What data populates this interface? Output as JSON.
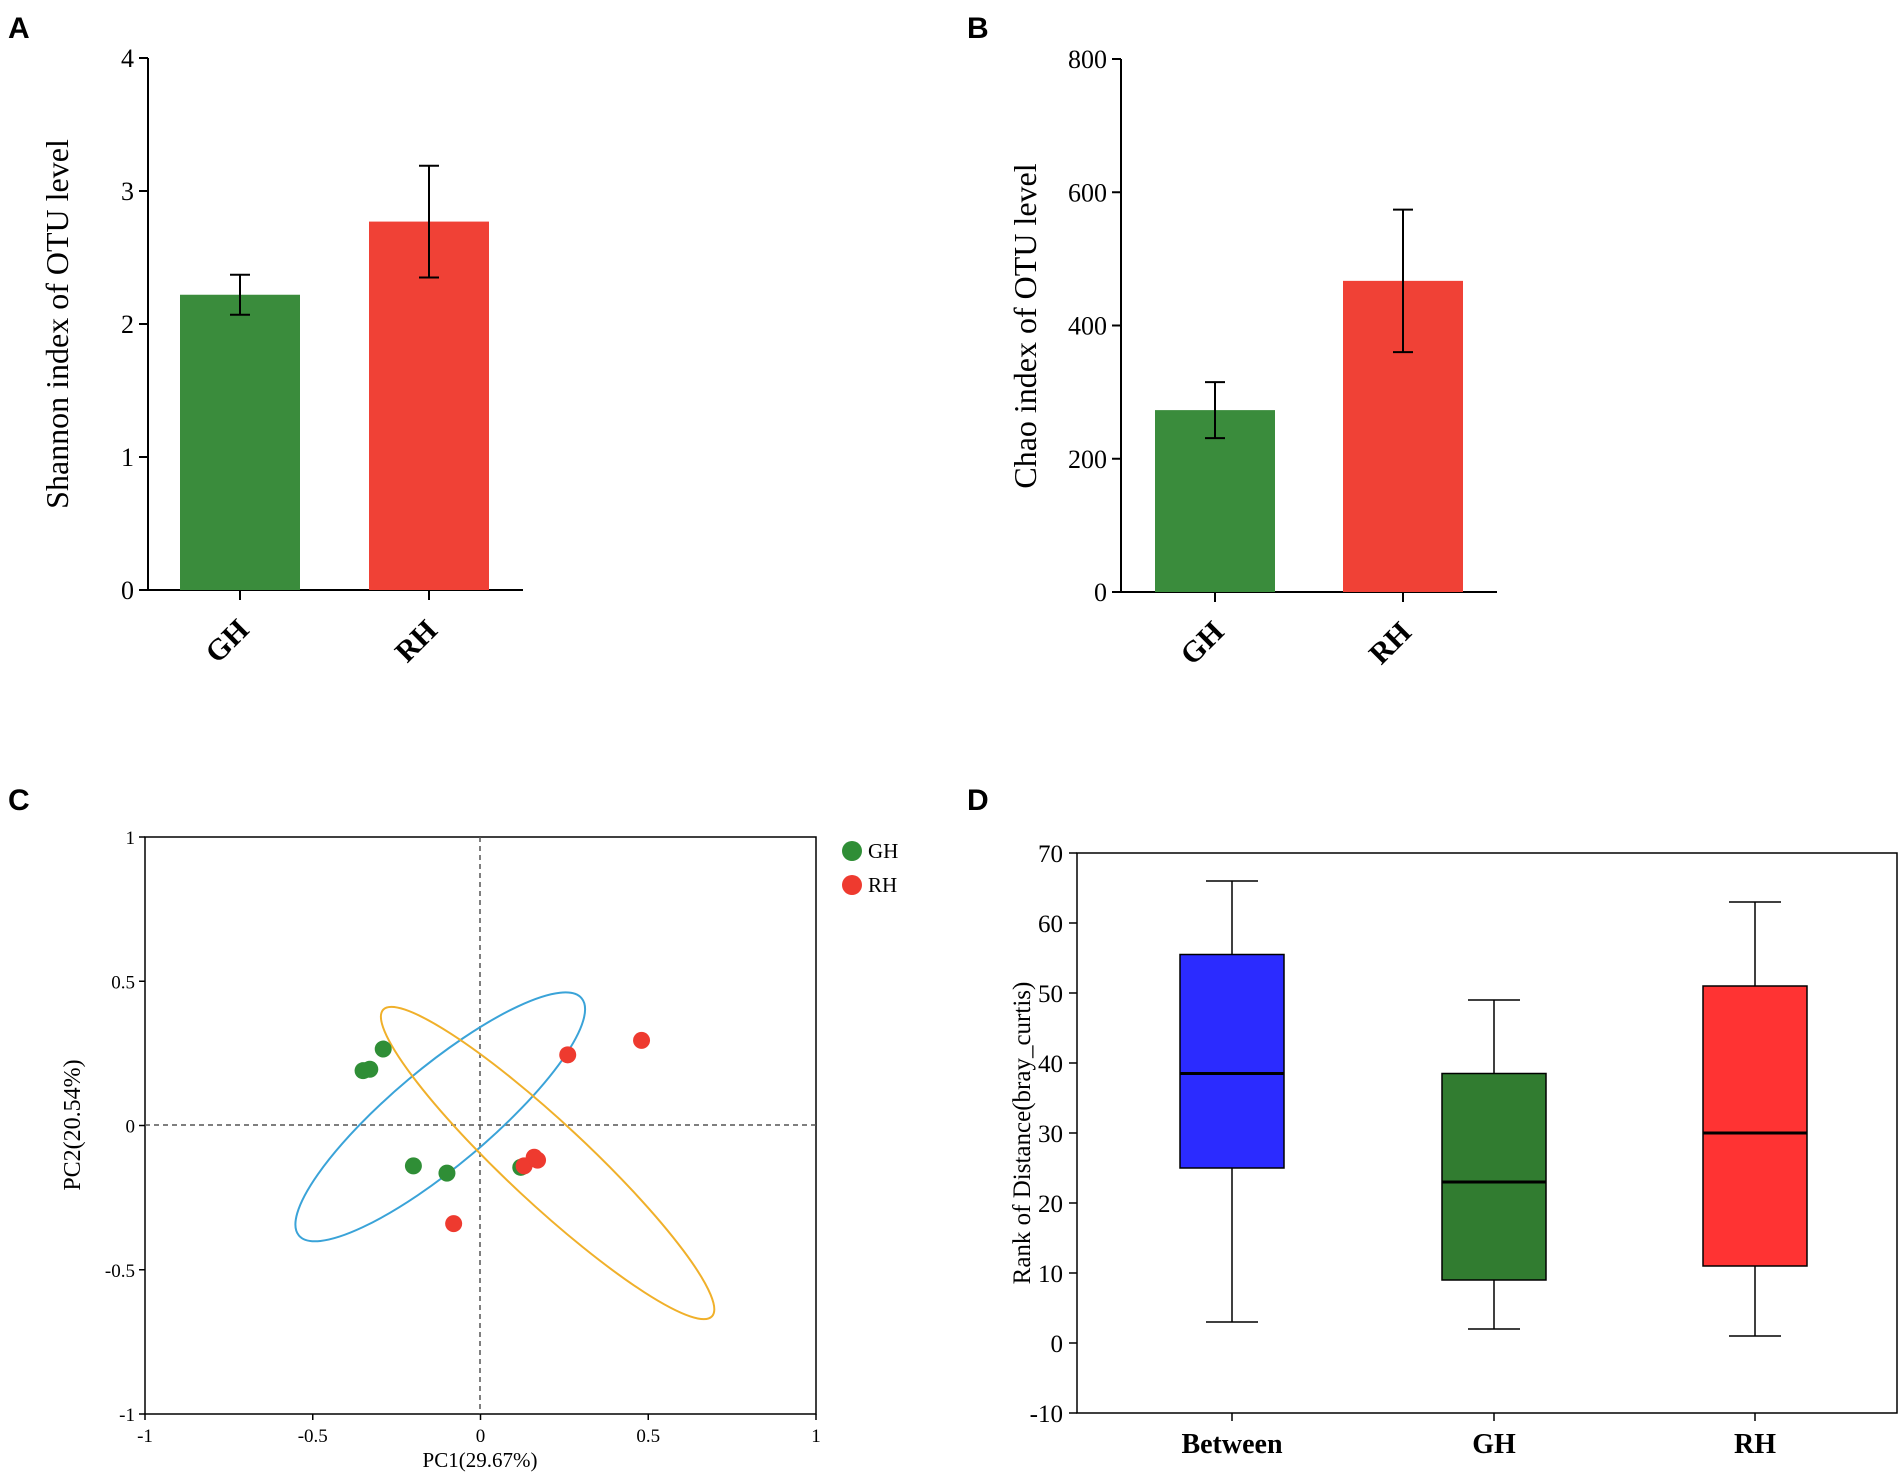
{
  "colors": {
    "green": "#3a8c3c",
    "red": "#f04136",
    "box_blue": "#2b2bff",
    "box_green": "#317c30",
    "box_red": "#ff3333",
    "ellipse_blue": "#3aa3d8",
    "ellipse_orange": "#f0b02a",
    "pt_green": "#2f8e36",
    "pt_red": "#ee3a2f"
  },
  "chart_data": [
    {
      "panel": "A",
      "type": "bar",
      "categories": [
        "GH",
        "RH"
      ],
      "values": [
        2.22,
        2.77
      ],
      "errors": [
        0.15,
        0.42
      ],
      "ylabel": "Shannon index of OTU level",
      "ylim": [
        0,
        4
      ],
      "yticks": [
        "0",
        "1",
        "2",
        "3",
        "4"
      ]
    },
    {
      "panel": "B",
      "type": "bar",
      "categories": [
        "GH",
        "RH"
      ],
      "values": [
        273,
        467
      ],
      "errors": [
        42,
        107
      ],
      "ylabel": "Chao index of OTU level",
      "ylim": [
        0,
        800
      ],
      "yticks": [
        "0",
        "200",
        "400",
        "600",
        "800"
      ]
    },
    {
      "panel": "C",
      "type": "scatter",
      "xlabel": "PC1(29.67%)",
      "ylabel": "PC2(20.54%)",
      "xlim": [
        -1,
        1
      ],
      "ylim": [
        -1,
        1
      ],
      "xticks": [
        "-1",
        "-0.5",
        "0",
        "0.5",
        "1"
      ],
      "yticks": [
        "1",
        "0.5",
        "0",
        "-0.5",
        "-1"
      ],
      "legend": [
        "GH",
        "RH"
      ],
      "series": [
        {
          "name": "GH",
          "points": [
            [
              -0.35,
              0.19
            ],
            [
              -0.33,
              0.195
            ],
            [
              -0.29,
              0.265
            ],
            [
              -0.2,
              -0.14
            ],
            [
              -0.1,
              -0.165
            ],
            [
              0.12,
              -0.145
            ]
          ]
        },
        {
          "name": "RH",
          "points": [
            [
              -0.08,
              -0.34
            ],
            [
              0.13,
              -0.14
            ],
            [
              0.16,
              -0.11
            ],
            [
              0.17,
              -0.12
            ],
            [
              0.26,
              0.245
            ],
            [
              0.48,
              0.295
            ]
          ]
        }
      ],
      "ellipses": [
        {
          "group": "GH",
          "center": [
            -0.12,
            0.03
          ],
          "half_axes": [
            0.55,
            0.17
          ],
          "angle_deg": -40
        },
        {
          "group": "RH",
          "center": [
            0.2,
            -0.13
          ],
          "half_axes": [
            0.67,
            0.14
          ],
          "angle_deg": 43
        }
      ]
    },
    {
      "panel": "D",
      "type": "box",
      "categories": [
        "Between",
        "GH",
        "RH"
      ],
      "boxes": [
        {
          "min": 3,
          "q1": 25,
          "median": 38.5,
          "q3": 55.5,
          "max": 66
        },
        {
          "min": 2,
          "q1": 9,
          "median": 23,
          "q3": 38.5,
          "max": 49
        },
        {
          "min": 1,
          "q1": 11,
          "median": 30,
          "q3": 51,
          "max": 63
        }
      ],
      "ylabel": "Rank of Distance(bray_curtis)",
      "ylim": [
        -10,
        70
      ],
      "yticks": [
        "-10",
        "0",
        "10",
        "20",
        "30",
        "40",
        "50",
        "60",
        "70"
      ]
    }
  ]
}
